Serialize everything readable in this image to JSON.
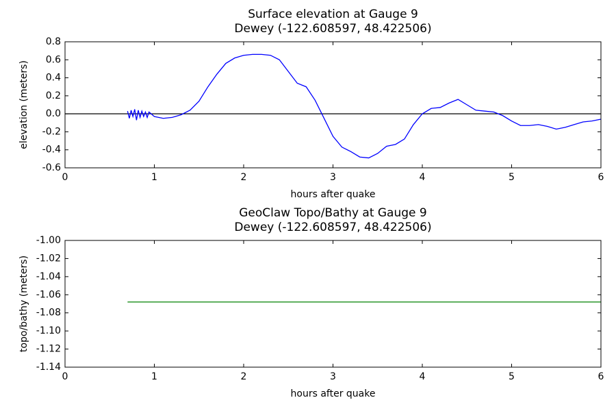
{
  "chart_data": [
    {
      "type": "line",
      "title": "Surface elevation at Gauge 9",
      "subtitle": "Dewey  (-122.608597, 48.422506)",
      "xlabel": "hours after quake",
      "ylabel": "elevation (meters)",
      "xlim": [
        0,
        6
      ],
      "xticks": [
        0,
        1,
        2,
        3,
        4,
        5,
        6
      ],
      "ylim": [
        -0.6,
        0.8
      ],
      "yticks": [
        -0.6,
        -0.4,
        -0.2,
        {
          "value": 0,
          "label": "0.0"
        },
        0.2,
        0.4,
        0.6,
        0.8
      ],
      "reference_line": {
        "y": 0,
        "color": "#000000"
      },
      "series": [
        {
          "color": "#0000ff",
          "x": [
            0.7,
            0.72,
            0.74,
            0.76,
            0.78,
            0.8,
            0.82,
            0.84,
            0.86,
            0.88,
            0.9,
            0.92,
            0.94,
            1.0,
            1.1,
            1.2,
            1.3,
            1.4,
            1.5,
            1.6,
            1.7,
            1.8,
            1.9,
            2.0,
            2.1,
            2.2,
            2.3,
            2.4,
            2.5,
            2.6,
            2.7,
            2.8,
            2.9,
            3.0,
            3.1,
            3.2,
            3.3,
            3.4,
            3.5,
            3.6,
            3.7,
            3.8,
            3.9,
            4.0,
            4.1,
            4.2,
            4.3,
            4.4,
            4.5,
            4.6,
            4.7,
            4.8,
            4.9,
            5.0,
            5.1,
            5.2,
            5.3,
            5.4,
            5.5,
            5.6,
            5.7,
            5.8,
            5.9,
            6.0
          ],
          "values": [
            0.03,
            -0.05,
            0.04,
            -0.03,
            0.05,
            -0.07,
            0.04,
            -0.04,
            0.03,
            -0.03,
            0.02,
            -0.04,
            0.02,
            -0.03,
            -0.05,
            -0.04,
            -0.01,
            0.04,
            0.14,
            0.3,
            0.44,
            0.56,
            0.62,
            0.65,
            0.66,
            0.66,
            0.65,
            0.6,
            0.47,
            0.34,
            0.3,
            0.15,
            -0.05,
            -0.25,
            -0.37,
            -0.42,
            -0.48,
            -0.49,
            -0.44,
            -0.36,
            -0.34,
            -0.28,
            -0.12,
            0.0,
            0.06,
            0.07,
            0.12,
            0.16,
            0.1,
            0.04,
            0.03,
            0.02,
            -0.02,
            -0.08,
            -0.13,
            -0.13,
            -0.12,
            -0.14,
            -0.17,
            -0.15,
            -0.12,
            -0.09,
            -0.08,
            -0.06
          ]
        }
      ]
    },
    {
      "type": "line",
      "title": "GeoClaw Topo/Bathy at Gauge 9",
      "subtitle": "Dewey  (-122.608597, 48.422506)",
      "xlabel": "hours after quake",
      "ylabel": "topo/bathy (meters)",
      "xlim": [
        0,
        6
      ],
      "xticks": [
        0,
        1,
        2,
        3,
        4,
        5,
        6
      ],
      "ylim": [
        -1.14,
        -1.0
      ],
      "yticks": [
        -1.14,
        -1.12,
        {
          "value": -1.1,
          "label": "-1.10"
        },
        -1.08,
        -1.06,
        -1.04,
        -1.02,
        {
          "value": -1.0,
          "label": "-1.00"
        }
      ],
      "series": [
        {
          "color": "#008000",
          "x": [
            0.7,
            6
          ],
          "values": [
            -1.068,
            -1.068
          ]
        }
      ]
    }
  ]
}
